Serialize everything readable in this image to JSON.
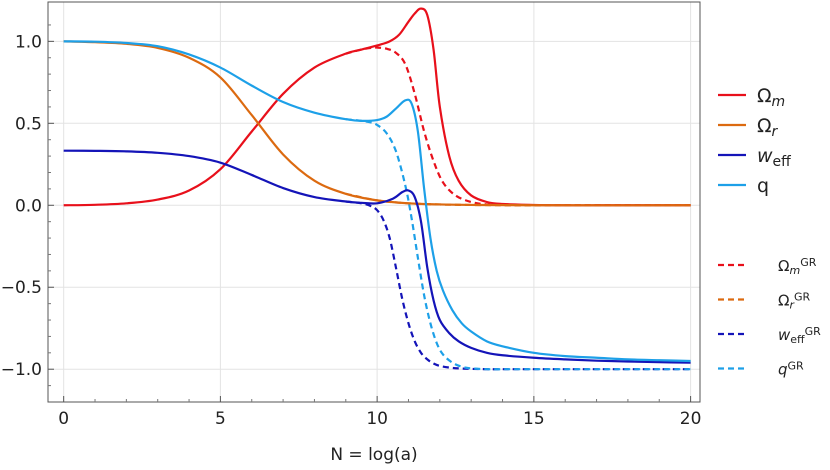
{
  "chart_data": {
    "type": "line",
    "title": "",
    "xlabel": "N = log(a)",
    "ylabel": "",
    "xlim": [
      -0.5,
      20.3
    ],
    "ylim": [
      -1.2,
      1.24
    ],
    "xticks": [
      0,
      5,
      10,
      15,
      20
    ],
    "xtick_labels": [
      "0",
      "5",
      "10",
      "15",
      "20"
    ],
    "yticks": [
      -1.0,
      -0.5,
      0.0,
      0.5,
      1.0
    ],
    "ytick_labels": [
      "−1.0",
      "−0.5",
      "0.0",
      "0.5",
      "1.0"
    ],
    "grid": true,
    "legend_position": "right",
    "series": [
      {
        "name": "Ωm",
        "label_main": "Ω",
        "label_sub": "m",
        "label_sup": "",
        "style": "solid",
        "color": "#e8101b",
        "x": [
          0,
          1,
          2,
          3,
          4,
          5,
          6,
          7,
          8,
          9,
          9.5,
          10,
          10.4,
          10.7,
          11,
          11.2,
          11.4,
          11.6,
          11.8,
          12,
          12.3,
          12.6,
          13,
          13.5,
          14,
          15,
          16,
          17,
          18,
          19,
          20
        ],
        "y": [
          0,
          0.003,
          0.012,
          0.035,
          0.09,
          0.22,
          0.45,
          0.68,
          0.84,
          0.925,
          0.95,
          0.975,
          1.0,
          1.04,
          1.12,
          1.17,
          1.2,
          1.16,
          0.95,
          0.6,
          0.3,
          0.15,
          0.06,
          0.02,
          0.008,
          0.002,
          0,
          0,
          0,
          0,
          0
        ]
      },
      {
        "name": "Ωr",
        "label_main": "Ω",
        "label_sub": "r",
        "label_sup": "",
        "style": "solid",
        "color": "#dc6a10",
        "x": [
          0,
          1,
          2,
          3,
          4,
          5,
          6,
          7,
          8,
          9,
          10,
          11,
          12,
          13,
          15,
          20
        ],
        "y": [
          1.0,
          0.995,
          0.985,
          0.96,
          0.9,
          0.78,
          0.55,
          0.31,
          0.15,
          0.07,
          0.03,
          0.012,
          0.005,
          0.002,
          0,
          0
        ]
      },
      {
        "name": "weff",
        "label_main": "w",
        "label_sub": "eff",
        "label_sup": "",
        "style": "solid",
        "color": "#1414b8",
        "x": [
          0,
          1,
          2,
          3,
          4,
          5,
          6,
          7,
          8,
          9,
          9.5,
          10,
          10.5,
          10.8,
          11,
          11.2,
          11.4,
          11.6,
          11.8,
          12,
          12.3,
          12.6,
          13,
          13.5,
          14,
          15,
          16,
          17,
          18,
          19,
          20
        ],
        "y": [
          0.333,
          0.332,
          0.329,
          0.32,
          0.3,
          0.26,
          0.185,
          0.105,
          0.05,
          0.023,
          0.015,
          0.012,
          0.04,
          0.08,
          0.09,
          0.05,
          -0.1,
          -0.38,
          -0.58,
          -0.7,
          -0.78,
          -0.83,
          -0.87,
          -0.9,
          -0.915,
          -0.93,
          -0.94,
          -0.948,
          -0.953,
          -0.957,
          -0.96
        ]
      },
      {
        "name": "q",
        "label_main": "q",
        "label_sub": "",
        "label_sup": "",
        "style": "solid",
        "color": "#1da0e8",
        "x": [
          0,
          1,
          2,
          3,
          4,
          5,
          6,
          7,
          8,
          9,
          9.5,
          10,
          10.3,
          10.6,
          10.9,
          11.1,
          11.3,
          11.5,
          11.7,
          11.9,
          12.1,
          12.4,
          12.7,
          13,
          13.5,
          14,
          15,
          16,
          17,
          18,
          19,
          20
        ],
        "y": [
          1.0,
          0.998,
          0.99,
          0.97,
          0.92,
          0.84,
          0.73,
          0.63,
          0.565,
          0.525,
          0.515,
          0.52,
          0.54,
          0.59,
          0.64,
          0.62,
          0.45,
          0.1,
          -0.2,
          -0.4,
          -0.52,
          -0.64,
          -0.72,
          -0.77,
          -0.83,
          -0.86,
          -0.9,
          -0.92,
          -0.93,
          -0.94,
          -0.945,
          -0.95
        ]
      },
      {
        "name": "Ωm GR",
        "label_main": "Ω",
        "label_sub": "m",
        "label_sup": "GR",
        "style": "dashed",
        "color": "#e8101b",
        "x": [
          9,
          9.5,
          9.8,
          10,
          10.3,
          10.6,
          10.9,
          11.2,
          11.5,
          11.8,
          12.1,
          12.5,
          13,
          13.5,
          14,
          15,
          16,
          17,
          18,
          19,
          20
        ],
        "y": [
          0.925,
          0.95,
          0.96,
          0.962,
          0.955,
          0.93,
          0.86,
          0.68,
          0.45,
          0.27,
          0.14,
          0.06,
          0.02,
          0.005,
          0.001,
          0,
          0,
          0,
          0,
          0,
          0
        ]
      },
      {
        "name": "Ωr GR",
        "label_main": "Ω",
        "label_sub": "r",
        "label_sup": "GR",
        "style": "dashed",
        "color": "#dc6a10",
        "x": [
          9,
          10,
          11,
          12,
          13,
          15,
          20
        ],
        "y": [
          0.07,
          0.03,
          0.012,
          0.005,
          0.002,
          0,
          0
        ]
      },
      {
        "name": "weff GR",
        "label_main": "w",
        "label_sub": "eff",
        "label_sup": "GR",
        "style": "dashed",
        "color": "#1414b8",
        "x": [
          9,
          9.5,
          9.8,
          10,
          10.2,
          10.4,
          10.6,
          10.8,
          11,
          11.2,
          11.4,
          11.6,
          11.8,
          12,
          12.3,
          12.6,
          13,
          13.5,
          14,
          15,
          16,
          17,
          18,
          19,
          20
        ],
        "y": [
          0.023,
          0.012,
          -0.005,
          -0.03,
          -0.09,
          -0.2,
          -0.38,
          -0.57,
          -0.72,
          -0.83,
          -0.9,
          -0.94,
          -0.965,
          -0.98,
          -0.99,
          -0.995,
          -0.998,
          -1.0,
          -1.0,
          -1.0,
          -1.0,
          -1.0,
          -1.0,
          -1.0,
          -1.0
        ]
      },
      {
        "name": "q GR",
        "label_main": "q",
        "label_sub": "",
        "label_sup": "GR",
        "style": "dashed",
        "color": "#1da0e8",
        "x": [
          9,
          9.5,
          9.8,
          10,
          10.3,
          10.6,
          10.9,
          11.1,
          11.3,
          11.5,
          11.7,
          11.9,
          12.1,
          12.4,
          12.7,
          13,
          13.5,
          14,
          15,
          16,
          17,
          18,
          19,
          20
        ],
        "y": [
          0.525,
          0.515,
          0.505,
          0.49,
          0.44,
          0.33,
          0.12,
          -0.08,
          -0.32,
          -0.55,
          -0.72,
          -0.84,
          -0.91,
          -0.96,
          -0.985,
          -0.995,
          -1.0,
          -1.0,
          -1.0,
          -1.0,
          -1.0,
          -1.0,
          -1.0,
          -1.0
        ]
      }
    ]
  }
}
